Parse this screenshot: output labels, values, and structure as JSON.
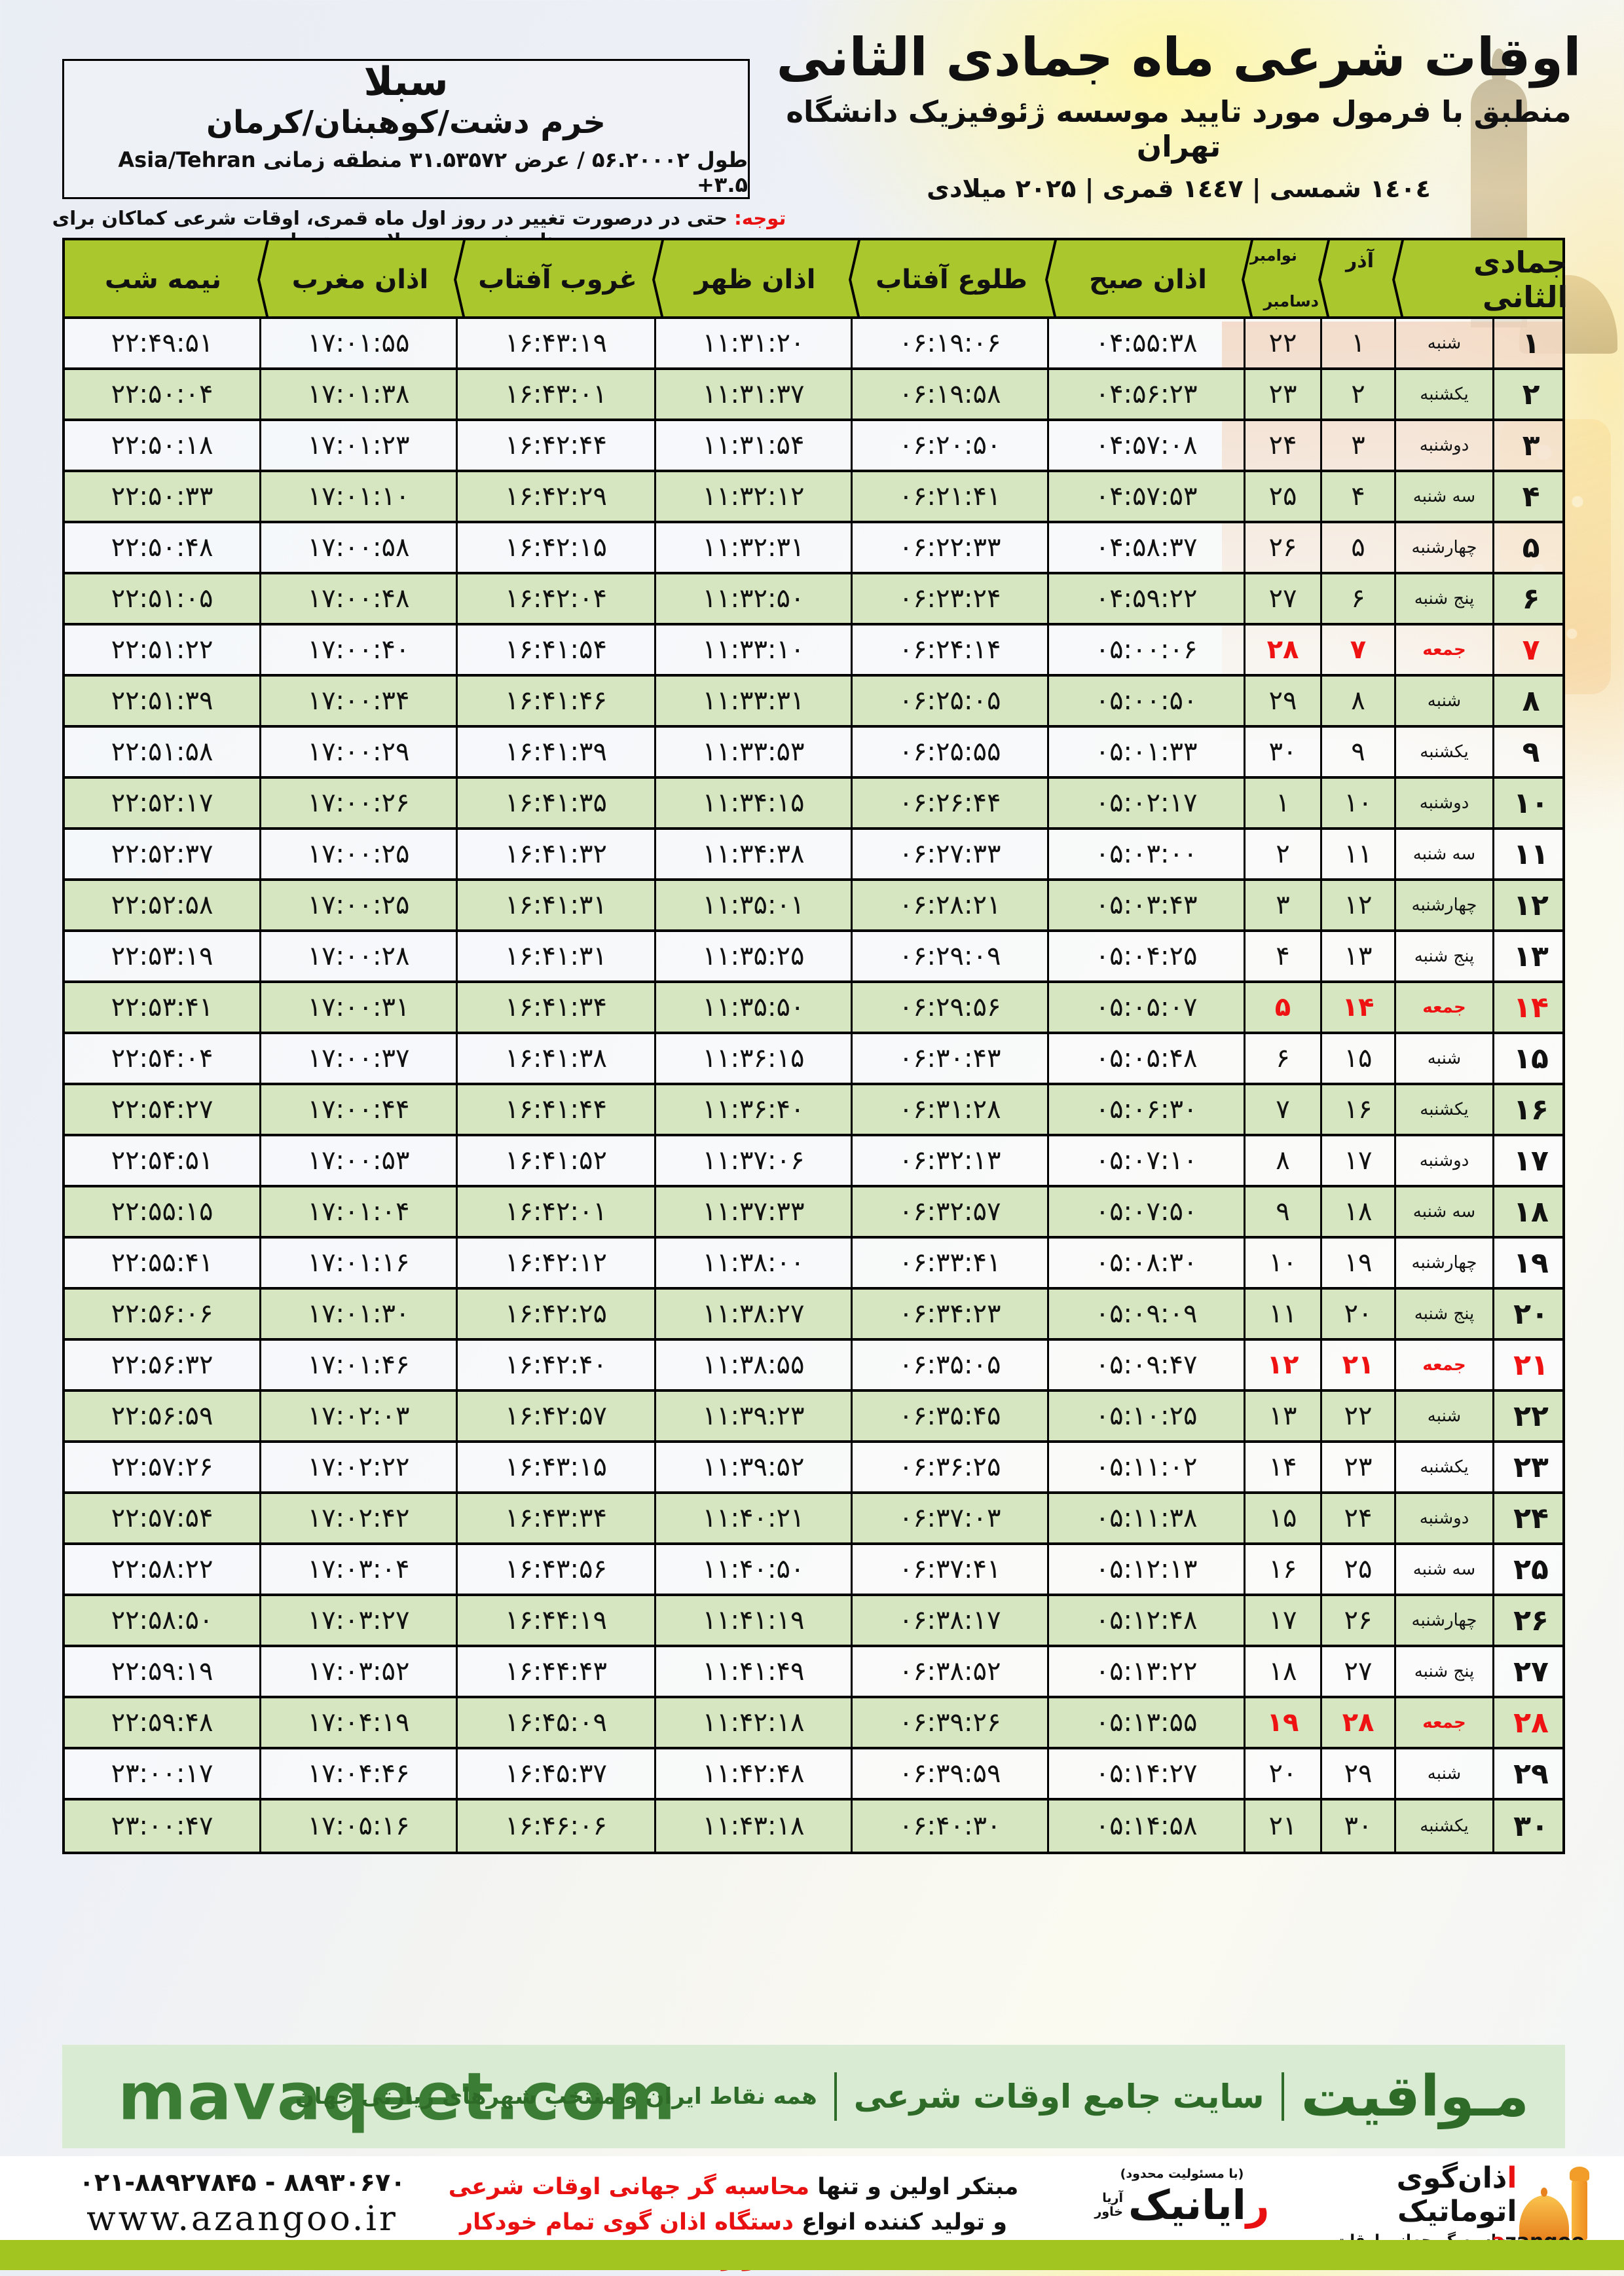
{
  "title_block": {
    "title": "اوقات شرعی ماه جمادی الثانی",
    "subtitle": "منطبق با فرمول مورد تایید موسسه ژئوفیزیک دانشگاه تهران",
    "years": "۱٤٠٤ شمسی | ۱٤٤۷ قمری | ۲٠۲۵ میلادی"
  },
  "location_box": {
    "name": "سبلا",
    "region": "خرم دشت/کوهبنان/کرمان",
    "coords": "طول ۵۶.۲۰۰۰۲ / عرض ۳۱.۵۳۵۷۲ منطقه زمانی Asia/Tehran +۳.۵"
  },
  "note": {
    "label": "توجه:",
    "text": " حتی در درصورت تغییر در روز اول ماه قمری، اوقات شرعی کماکان برای روزهای شمسی و میلادی معتبر است."
  },
  "table": {
    "headers": {
      "midnight": "نیمه شب",
      "maghrib": "اذان مغرب",
      "sunset": "غروب آفتاب",
      "dhuhr": "اذان ظهر",
      "sunrise": "طلوع آفتاب",
      "fajr": "اذان صبح",
      "greg_top": "نوامبر",
      "greg_bottom": "دسامبر",
      "azar": "آذر",
      "month": "جمادی الثانی"
    },
    "rows": [
      {
        "day": "۱",
        "week": "شنبه",
        "azar": "۱",
        "greg": "۲۲",
        "fajr": "۰۴:۵۵:۳۸",
        "rise": "۰۶:۱۹:۰۶",
        "noon": "۱۱:۳۱:۲۰",
        "set": "۱۶:۴۳:۱۹",
        "magh": "۱۷:۰۱:۵۵",
        "mid": "۲۲:۴۹:۵۱",
        "friday": false
      },
      {
        "day": "۲",
        "week": "یکشنبه",
        "azar": "۲",
        "greg": "۲۳",
        "fajr": "۰۴:۵۶:۲۳",
        "rise": "۰۶:۱۹:۵۸",
        "noon": "۱۱:۳۱:۳۷",
        "set": "۱۶:۴۳:۰۱",
        "magh": "۱۷:۰۱:۳۸",
        "mid": "۲۲:۵۰:۰۴",
        "friday": false
      },
      {
        "day": "۳",
        "week": "دوشنبه",
        "azar": "۳",
        "greg": "۲۴",
        "fajr": "۰۴:۵۷:۰۸",
        "rise": "۰۶:۲۰:۵۰",
        "noon": "۱۱:۳۱:۵۴",
        "set": "۱۶:۴۲:۴۴",
        "magh": "۱۷:۰۱:۲۳",
        "mid": "۲۲:۵۰:۱۸",
        "friday": false
      },
      {
        "day": "۴",
        "week": "سه شنبه",
        "azar": "۴",
        "greg": "۲۵",
        "fajr": "۰۴:۵۷:۵۳",
        "rise": "۰۶:۲۱:۴۱",
        "noon": "۱۱:۳۲:۱۲",
        "set": "۱۶:۴۲:۲۹",
        "magh": "۱۷:۰۱:۱۰",
        "mid": "۲۲:۵۰:۳۳",
        "friday": false
      },
      {
        "day": "۵",
        "week": "چهارشنبه",
        "azar": "۵",
        "greg": "۲۶",
        "fajr": "۰۴:۵۸:۳۷",
        "rise": "۰۶:۲۲:۳۳",
        "noon": "۱۱:۳۲:۳۱",
        "set": "۱۶:۴۲:۱۵",
        "magh": "۱۷:۰۰:۵۸",
        "mid": "۲۲:۵۰:۴۸",
        "friday": false
      },
      {
        "day": "۶",
        "week": "پنج شنبه",
        "azar": "۶",
        "greg": "۲۷",
        "fajr": "۰۴:۵۹:۲۲",
        "rise": "۰۶:۲۳:۲۴",
        "noon": "۱۱:۳۲:۵۰",
        "set": "۱۶:۴۲:۰۴",
        "magh": "۱۷:۰۰:۴۸",
        "mid": "۲۲:۵۱:۰۵",
        "friday": false
      },
      {
        "day": "۷",
        "week": "جمعه",
        "azar": "۷",
        "greg": "۲۸",
        "fajr": "۰۵:۰۰:۰۶",
        "rise": "۰۶:۲۴:۱۴",
        "noon": "۱۱:۳۳:۱۰",
        "set": "۱۶:۴۱:۵۴",
        "magh": "۱۷:۰۰:۴۰",
        "mid": "۲۲:۵۱:۲۲",
        "friday": true
      },
      {
        "day": "۸",
        "week": "شنبه",
        "azar": "۸",
        "greg": "۲۹",
        "fajr": "۰۵:۰۰:۵۰",
        "rise": "۰۶:۲۵:۰۵",
        "noon": "۱۱:۳۳:۳۱",
        "set": "۱۶:۴۱:۴۶",
        "magh": "۱۷:۰۰:۳۴",
        "mid": "۲۲:۵۱:۳۹",
        "friday": false
      },
      {
        "day": "۹",
        "week": "یکشنبه",
        "azar": "۹",
        "greg": "۳۰",
        "fajr": "۰۵:۰۱:۳۳",
        "rise": "۰۶:۲۵:۵۵",
        "noon": "۱۱:۳۳:۵۳",
        "set": "۱۶:۴۱:۳۹",
        "magh": "۱۷:۰۰:۲۹",
        "mid": "۲۲:۵۱:۵۸",
        "friday": false
      },
      {
        "day": "۱۰",
        "week": "دوشنبه",
        "azar": "۱۰",
        "greg": "۱",
        "fajr": "۰۵:۰۲:۱۷",
        "rise": "۰۶:۲۶:۴۴",
        "noon": "۱۱:۳۴:۱۵",
        "set": "۱۶:۴۱:۳۵",
        "magh": "۱۷:۰۰:۲۶",
        "mid": "۲۲:۵۲:۱۷",
        "friday": false
      },
      {
        "day": "۱۱",
        "week": "سه شنبه",
        "azar": "۱۱",
        "greg": "۲",
        "fajr": "۰۵:۰۳:۰۰",
        "rise": "۰۶:۲۷:۳۳",
        "noon": "۱۱:۳۴:۳۸",
        "set": "۱۶:۴۱:۳۲",
        "magh": "۱۷:۰۰:۲۵",
        "mid": "۲۲:۵۲:۳۷",
        "friday": false
      },
      {
        "day": "۱۲",
        "week": "چهارشنبه",
        "azar": "۱۲",
        "greg": "۳",
        "fajr": "۰۵:۰۳:۴۳",
        "rise": "۰۶:۲۸:۲۱",
        "noon": "۱۱:۳۵:۰۱",
        "set": "۱۶:۴۱:۳۱",
        "magh": "۱۷:۰۰:۲۵",
        "mid": "۲۲:۵۲:۵۸",
        "friday": false
      },
      {
        "day": "۱۳",
        "week": "پنج شنبه",
        "azar": "۱۳",
        "greg": "۴",
        "fajr": "۰۵:۰۴:۲۵",
        "rise": "۰۶:۲۹:۰۹",
        "noon": "۱۱:۳۵:۲۵",
        "set": "۱۶:۴۱:۳۱",
        "magh": "۱۷:۰۰:۲۸",
        "mid": "۲۲:۵۳:۱۹",
        "friday": false
      },
      {
        "day": "۱۴",
        "week": "جمعه",
        "azar": "۱۴",
        "greg": "۵",
        "fajr": "۰۵:۰۵:۰۷",
        "rise": "۰۶:۲۹:۵۶",
        "noon": "۱۱:۳۵:۵۰",
        "set": "۱۶:۴۱:۳۴",
        "magh": "۱۷:۰۰:۳۱",
        "mid": "۲۲:۵۳:۴۱",
        "friday": true
      },
      {
        "day": "۱۵",
        "week": "شنبه",
        "azar": "۱۵",
        "greg": "۶",
        "fajr": "۰۵:۰۵:۴۸",
        "rise": "۰۶:۳۰:۴۳",
        "noon": "۱۱:۳۶:۱۵",
        "set": "۱۶:۴۱:۳۸",
        "magh": "۱۷:۰۰:۳۷",
        "mid": "۲۲:۵۴:۰۴",
        "friday": false
      },
      {
        "day": "۱۶",
        "week": "یکشنبه",
        "azar": "۱۶",
        "greg": "۷",
        "fajr": "۰۵:۰۶:۳۰",
        "rise": "۰۶:۳۱:۲۸",
        "noon": "۱۱:۳۶:۴۰",
        "set": "۱۶:۴۱:۴۴",
        "magh": "۱۷:۰۰:۴۴",
        "mid": "۲۲:۵۴:۲۷",
        "friday": false
      },
      {
        "day": "۱۷",
        "week": "دوشنبه",
        "azar": "۱۷",
        "greg": "۸",
        "fajr": "۰۵:۰۷:۱۰",
        "rise": "۰۶:۳۲:۱۳",
        "noon": "۱۱:۳۷:۰۶",
        "set": "۱۶:۴۱:۵۲",
        "magh": "۱۷:۰۰:۵۳",
        "mid": "۲۲:۵۴:۵۱",
        "friday": false
      },
      {
        "day": "۱۸",
        "week": "سه شنبه",
        "azar": "۱۸",
        "greg": "۹",
        "fajr": "۰۵:۰۷:۵۰",
        "rise": "۰۶:۳۲:۵۷",
        "noon": "۱۱:۳۷:۳۳",
        "set": "۱۶:۴۲:۰۱",
        "magh": "۱۷:۰۱:۰۴",
        "mid": "۲۲:۵۵:۱۵",
        "friday": false
      },
      {
        "day": "۱۹",
        "week": "چهارشنبه",
        "azar": "۱۹",
        "greg": "۱۰",
        "fajr": "۰۵:۰۸:۳۰",
        "rise": "۰۶:۳۳:۴۱",
        "noon": "۱۱:۳۸:۰۰",
        "set": "۱۶:۴۲:۱۲",
        "magh": "۱۷:۰۱:۱۶",
        "mid": "۲۲:۵۵:۴۱",
        "friday": false
      },
      {
        "day": "۲۰",
        "week": "پنج شنبه",
        "azar": "۲۰",
        "greg": "۱۱",
        "fajr": "۰۵:۰۹:۰۹",
        "rise": "۰۶:۳۴:۲۳",
        "noon": "۱۱:۳۸:۲۷",
        "set": "۱۶:۴۲:۲۵",
        "magh": "۱۷:۰۱:۳۰",
        "mid": "۲۲:۵۶:۰۶",
        "friday": false
      },
      {
        "day": "۲۱",
        "week": "جمعه",
        "azar": "۲۱",
        "greg": "۱۲",
        "fajr": "۰۵:۰۹:۴۷",
        "rise": "۰۶:۳۵:۰۵",
        "noon": "۱۱:۳۸:۵۵",
        "set": "۱۶:۴۲:۴۰",
        "magh": "۱۷:۰۱:۴۶",
        "mid": "۲۲:۵۶:۳۲",
        "friday": true
      },
      {
        "day": "۲۲",
        "week": "شنبه",
        "azar": "۲۲",
        "greg": "۱۳",
        "fajr": "۰۵:۱۰:۲۵",
        "rise": "۰۶:۳۵:۴۵",
        "noon": "۱۱:۳۹:۲۳",
        "set": "۱۶:۴۲:۵۷",
        "magh": "۱۷:۰۲:۰۳",
        "mid": "۲۲:۵۶:۵۹",
        "friday": false
      },
      {
        "day": "۲۳",
        "week": "یکشنبه",
        "azar": "۲۳",
        "greg": "۱۴",
        "fajr": "۰۵:۱۱:۰۲",
        "rise": "۰۶:۳۶:۲۵",
        "noon": "۱۱:۳۹:۵۲",
        "set": "۱۶:۴۳:۱۵",
        "magh": "۱۷:۰۲:۲۲",
        "mid": "۲۲:۵۷:۲۶",
        "friday": false
      },
      {
        "day": "۲۴",
        "week": "دوشنبه",
        "azar": "۲۴",
        "greg": "۱۵",
        "fajr": "۰۵:۱۱:۳۸",
        "rise": "۰۶:۳۷:۰۳",
        "noon": "۱۱:۴۰:۲۱",
        "set": "۱۶:۴۳:۳۴",
        "magh": "۱۷:۰۲:۴۲",
        "mid": "۲۲:۵۷:۵۴",
        "friday": false
      },
      {
        "day": "۲۵",
        "week": "سه شنبه",
        "azar": "۲۵",
        "greg": "۱۶",
        "fajr": "۰۵:۱۲:۱۳",
        "rise": "۰۶:۳۷:۴۱",
        "noon": "۱۱:۴۰:۵۰",
        "set": "۱۶:۴۳:۵۶",
        "magh": "۱۷:۰۳:۰۴",
        "mid": "۲۲:۵۸:۲۲",
        "friday": false
      },
      {
        "day": "۲۶",
        "week": "چهارشنبه",
        "azar": "۲۶",
        "greg": "۱۷",
        "fajr": "۰۵:۱۲:۴۸",
        "rise": "۰۶:۳۸:۱۷",
        "noon": "۱۱:۴۱:۱۹",
        "set": "۱۶:۴۴:۱۹",
        "magh": "۱۷:۰۳:۲۷",
        "mid": "۲۲:۵۸:۵۰",
        "friday": false
      },
      {
        "day": "۲۷",
        "week": "پنج شنبه",
        "azar": "۲۷",
        "greg": "۱۸",
        "fajr": "۰۵:۱۳:۲۲",
        "rise": "۰۶:۳۸:۵۲",
        "noon": "۱۱:۴۱:۴۹",
        "set": "۱۶:۴۴:۴۳",
        "magh": "۱۷:۰۳:۵۲",
        "mid": "۲۲:۵۹:۱۹",
        "friday": false
      },
      {
        "day": "۲۸",
        "week": "جمعه",
        "azar": "۲۸",
        "greg": "۱۹",
        "fajr": "۰۵:۱۳:۵۵",
        "rise": "۰۶:۳۹:۲۶",
        "noon": "۱۱:۴۲:۱۸",
        "set": "۱۶:۴۵:۰۹",
        "magh": "۱۷:۰۴:۱۹",
        "mid": "۲۲:۵۹:۴۸",
        "friday": true
      },
      {
        "day": "۲۹",
        "week": "شنبه",
        "azar": "۲۹",
        "greg": "۲۰",
        "fajr": "۰۵:۱۴:۲۷",
        "rise": "۰۶:۳۹:۵۹",
        "noon": "۱۱:۴۲:۴۸",
        "set": "۱۶:۴۵:۳۷",
        "magh": "۱۷:۰۴:۴۶",
        "mid": "۲۳:۰۰:۱۷",
        "friday": false
      },
      {
        "day": "۳۰",
        "week": "یکشنبه",
        "azar": "۳۰",
        "greg": "۲۱",
        "fajr": "۰۵:۱۴:۵۸",
        "rise": "۰۶:۴۰:۳۰",
        "noon": "۱۱:۴۳:۱۸",
        "set": "۱۶:۴۶:۰۶",
        "magh": "۱۷:۰۵:۱۶",
        "mid": "۲۳:۰۰:۴۷",
        "friday": false
      }
    ]
  },
  "mavaqeet": {
    "domain": "mavaqeet.com",
    "brand": "مـواقیت",
    "tag1": "سایت جامع اوقات شرعی",
    "tag2": "همه نقاط ایران و منتخب شهرهای زیارتی جهان"
  },
  "footer": {
    "phone": "۰۲۱-۸۸۹۲۷۸۴۵ - ۸۸۹۳۰۶۷۰",
    "site": "www.azangoo.ir",
    "line1_black": "مبتکر اولین و تنها ",
    "line1_red": "محاسبه گر جهانی اوقات شرعی",
    "line2_black": "و تولید کننده انواع ",
    "line2_red": "دستگاه اذان گوی تمام خودکار ماهواره ای",
    "rayanik_small": "(با مسئولیت محدود)",
    "rayanik_r": "ر",
    "rayanik_rest": "ایانیک",
    "rayanik_side1": "آریا",
    "rayanik_side2": "خاور",
    "azangoo_title_red": "ا",
    "azangoo_title_rest": "ذان‌گوی اتوماتیک",
    "azangoo_sub": "محاسبه گر جهانی اوقات شرعی",
    "azangoo_latin_a": "a",
    "azangoo_latin_rest": "zangoo"
  },
  "colors": {
    "header_green": "#aac72e",
    "row_green": "#d5e6c1",
    "friday_red": "#ee1212",
    "band_green": "#d9ecd3",
    "band_text_green": "#2f6b28",
    "lime": "#a3c520"
  }
}
